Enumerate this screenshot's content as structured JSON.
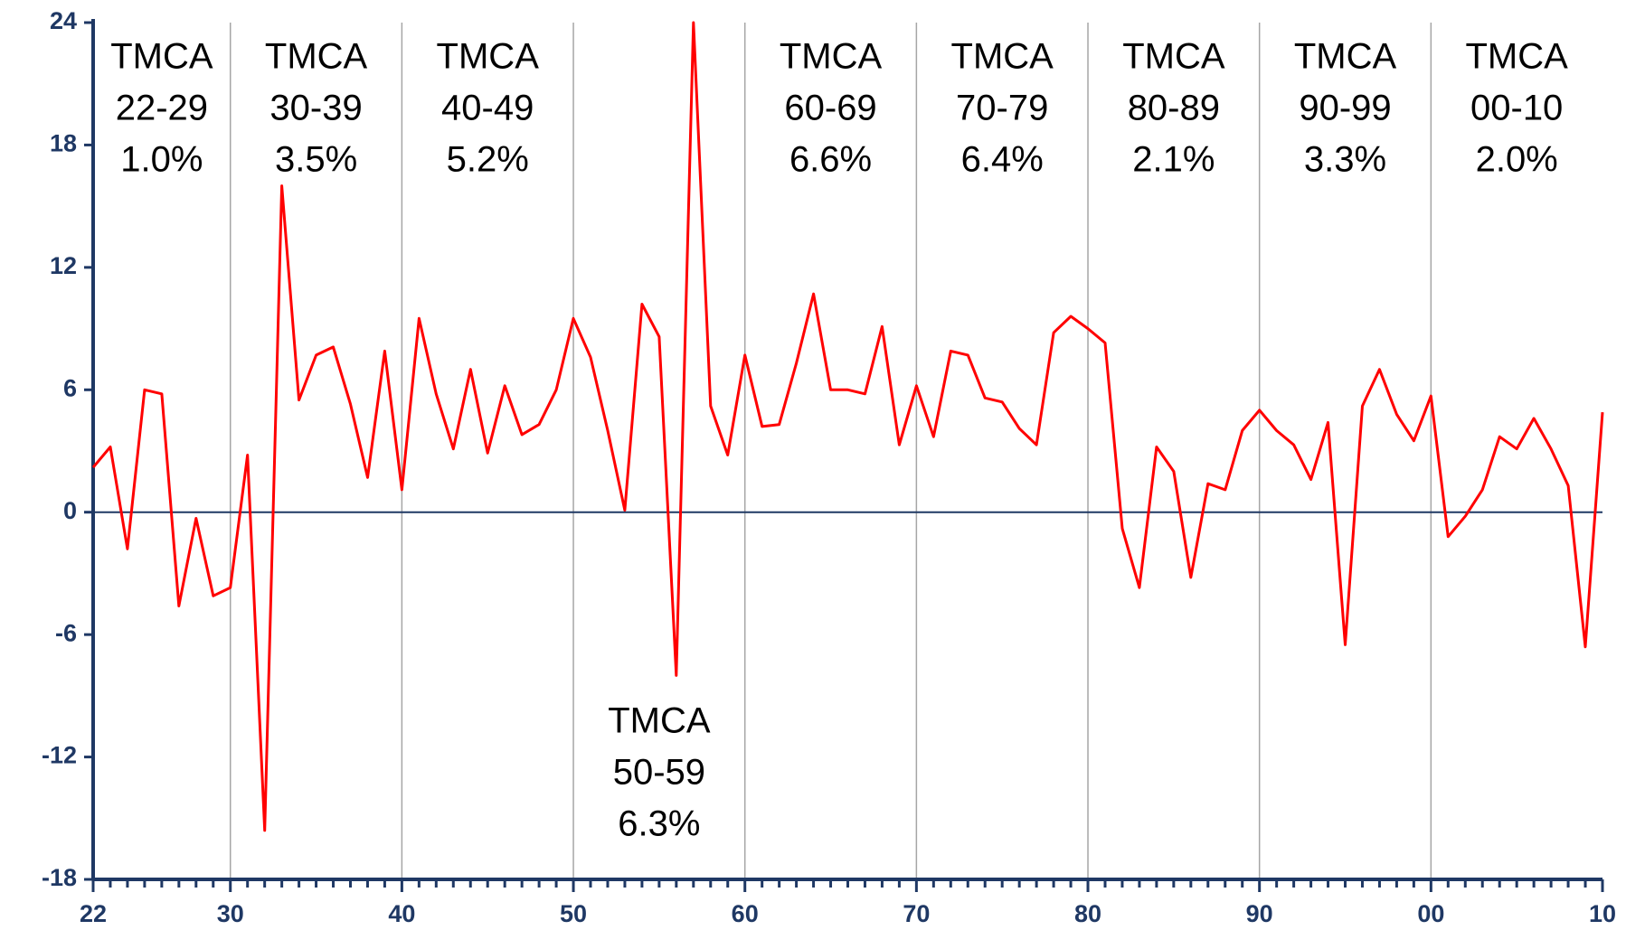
{
  "chart_data": {
    "type": "line",
    "categories": [
      "22",
      null,
      null,
      null,
      null,
      null,
      null,
      null,
      "30",
      null,
      null,
      null,
      null,
      null,
      null,
      null,
      null,
      null,
      "40",
      null,
      null,
      null,
      null,
      null,
      null,
      null,
      null,
      null,
      "50",
      null,
      null,
      null,
      null,
      null,
      null,
      null,
      null,
      null,
      "60",
      null,
      null,
      null,
      null,
      null,
      null,
      null,
      null,
      null,
      "70",
      null,
      null,
      null,
      null,
      null,
      null,
      null,
      null,
      null,
      "80",
      null,
      null,
      null,
      null,
      null,
      null,
      null,
      null,
      null,
      "90",
      null,
      null,
      null,
      null,
      null,
      null,
      null,
      null,
      null,
      "00",
      null,
      null,
      null,
      null,
      null,
      null,
      null,
      null,
      null,
      "10"
    ],
    "series": [
      {
        "color": "#ff0000",
        "values": [
          2.2,
          3.2,
          -1.8,
          6.0,
          5.8,
          -4.6,
          -0.3,
          -4.1,
          -3.7,
          2.8,
          -15.6,
          16.0,
          5.5,
          7.7,
          8.1,
          5.3,
          1.7,
          7.9,
          1.1,
          9.5,
          5.8,
          3.1,
          7.0,
          2.9,
          6.2,
          3.8,
          4.3,
          6.0,
          9.5,
          7.6,
          4.0,
          0.1,
          10.2,
          8.6,
          -8.0,
          24.0,
          5.2,
          2.8,
          7.7,
          4.2,
          4.3,
          7.3,
          10.7,
          6.0,
          6.0,
          5.8,
          9.1,
          3.3,
          6.2,
          3.7,
          7.9,
          7.7,
          5.6,
          5.4,
          4.1,
          3.3,
          8.8,
          9.6,
          9.0,
          8.3,
          -0.8,
          -3.7,
          3.2,
          2.0,
          -3.2,
          1.4,
          1.1,
          4.0,
          5.0,
          4.0,
          3.3,
          1.6,
          4.4,
          -6.5,
          5.2,
          7.0,
          4.8,
          3.5,
          5.7,
          -1.2,
          -0.2,
          1.1,
          3.7,
          3.1,
          4.6,
          3.1,
          1.3,
          -6.6,
          4.9
        ]
      }
    ],
    "ylim": [
      -18,
      24
    ],
    "yticks": [
      -18,
      -12,
      -6,
      0,
      6,
      12,
      18,
      24
    ],
    "zero_line": true,
    "vertical_grid": true,
    "annotations": [
      {
        "lines": [
          "TMCA",
          "22-29",
          "1.0%"
        ]
      },
      {
        "lines": [
          "TMCA",
          "30-39",
          "3.5%"
        ]
      },
      {
        "lines": [
          "TMCA",
          "40-49",
          "5.2%"
        ]
      },
      {
        "lines": [
          "TMCA",
          "50-59",
          "6.3%"
        ]
      },
      {
        "lines": [
          "TMCA",
          "60-69",
          "6.6%"
        ]
      },
      {
        "lines": [
          "TMCA",
          "70-79",
          "6.4%"
        ]
      },
      {
        "lines": [
          "TMCA",
          "80-89",
          "2.1%"
        ]
      },
      {
        "lines": [
          "TMCA",
          "90-99",
          "3.3%"
        ]
      },
      {
        "lines": [
          "TMCA",
          "00-10",
          "2.0%"
        ]
      }
    ]
  }
}
